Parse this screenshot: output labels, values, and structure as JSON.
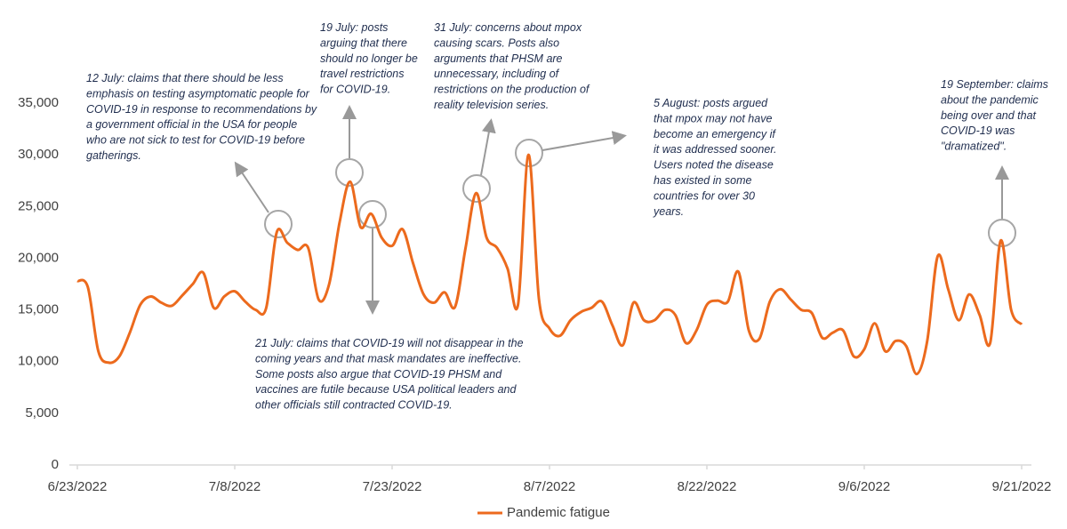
{
  "chart_data": {
    "type": "line",
    "x": [
      "6/23/2022",
      "6/24/2022",
      "6/25/2022",
      "6/26/2022",
      "6/27/2022",
      "6/28/2022",
      "6/29/2022",
      "6/30/2022",
      "7/1/2022",
      "7/2/2022",
      "7/3/2022",
      "7/4/2022",
      "7/5/2022",
      "7/6/2022",
      "7/7/2022",
      "7/8/2022",
      "7/9/2022",
      "7/10/2022",
      "7/11/2022",
      "7/12/2022",
      "7/13/2022",
      "7/14/2022",
      "7/15/2022",
      "7/16/2022",
      "7/17/2022",
      "7/18/2022",
      "7/19/2022",
      "7/20/2022",
      "7/21/2022",
      "7/22/2022",
      "7/23/2022",
      "7/24/2022",
      "7/25/2022",
      "7/26/2022",
      "7/27/2022",
      "7/28/2022",
      "7/29/2022",
      "7/30/2022",
      "7/31/2022",
      "8/1/2022",
      "8/2/2022",
      "8/3/2022",
      "8/4/2022",
      "8/5/2022",
      "8/6/2022",
      "8/7/2022",
      "8/8/2022",
      "8/9/2022",
      "8/10/2022",
      "8/11/2022",
      "8/12/2022",
      "8/13/2022",
      "8/14/2022",
      "8/15/2022",
      "8/16/2022",
      "8/17/2022",
      "8/18/2022",
      "8/19/2022",
      "8/20/2022",
      "8/21/2022",
      "8/22/2022",
      "8/23/2022",
      "8/24/2022",
      "8/25/2022",
      "8/26/2022",
      "8/27/2022",
      "8/28/2022",
      "8/29/2022",
      "8/30/2022",
      "8/31/2022",
      "9/1/2022",
      "9/2/2022",
      "9/3/2022",
      "9/4/2022",
      "9/5/2022",
      "9/6/2022",
      "9/7/2022",
      "9/8/2022",
      "9/9/2022",
      "9/10/2022",
      "9/11/2022",
      "9/12/2022",
      "9/13/2022",
      "9/14/2022",
      "9/15/2022",
      "9/16/2022",
      "9/17/2022",
      "9/18/2022",
      "9/19/2022",
      "9/20/2022",
      "9/21/2022"
    ],
    "series": [
      {
        "name": "Pandemic fatigue",
        "color": "#ec6a1d",
        "values": [
          17800,
          17200,
          11000,
          9900,
          10500,
          12800,
          15500,
          16300,
          15700,
          15400,
          16400,
          17500,
          18600,
          15200,
          16300,
          16800,
          15800,
          15000,
          15200,
          22500,
          21500,
          20800,
          21000,
          16000,
          17500,
          23500,
          27400,
          23000,
          24300,
          22000,
          21200,
          22800,
          19500,
          16500,
          15700,
          16700,
          15300,
          21000,
          26300,
          22000,
          21000,
          19000,
          15500,
          30000,
          16000,
          13200,
          12500,
          14000,
          14800,
          15200,
          15800,
          13500,
          11600,
          15700,
          14000,
          14000,
          15000,
          14500,
          11800,
          13000,
          15500,
          15900,
          15800,
          18700,
          13000,
          12200,
          15800,
          17000,
          16000,
          15000,
          14700,
          12300,
          12800,
          13000,
          10500,
          11200,
          13700,
          11000,
          12000,
          11500,
          8800,
          12000,
          20200,
          17000,
          14000,
          16500,
          14500,
          11800,
          21700,
          15000,
          13600
        ]
      }
    ],
    "ylim": [
      0,
      35000
    ],
    "yticks": [
      0,
      {
        "value": 5000,
        "label": "5,000"
      },
      {
        "value": 10000,
        "label": "10,000"
      },
      {
        "value": 15000,
        "label": "15,000"
      },
      {
        "value": 20000,
        "label": "20,000"
      },
      {
        "value": 25000,
        "label": "25,000"
      },
      {
        "value": 30000,
        "label": "30,000"
      },
      {
        "value": 35000,
        "label": "35,000"
      }
    ],
    "xticks": [
      "6/23/2022",
      "7/8/2022",
      "7/23/2022",
      "8/7/2022",
      "8/22/2022",
      "9/6/2022",
      "9/21/2022"
    ],
    "grid": false,
    "legend": "bottom",
    "annotations": [
      [
        "12 July: claims that there should be less",
        "emphasis on testing asymptomatic people for",
        "COVID-19 in response to recommendations by",
        "a government official in the USA for people",
        "who are not sick to test for COVID-19 before",
        "gatherings."
      ],
      [
        "19 July: posts",
        "arguing that there",
        "should no longer be",
        "travel restrictions",
        "for COVID-19."
      ],
      [
        "31 July: concerns about mpox",
        "causing scars. Posts also",
        "arguments that PHSM are",
        "unnecessary, including of",
        "restrictions on the production of",
        "reality television series."
      ],
      [
        "5 August: posts argued",
        "that mpox may not have",
        "become an emergency if",
        "it was addressed sooner.",
        "Users noted the disease",
        "has existed in some",
        "countries for over 30",
        "years."
      ],
      [
        "19 September: claims",
        "about the pandemic",
        "being over and that",
        "COVID-19 was",
        "\"dramatized\"."
      ],
      [
        "21 July: claims that COVID-19 will not disappear in the",
        "coming years and that mask mandates are ineffective.",
        "Some posts also argue that COVID-19 PHSM and",
        "vaccines are futile because USA political leaders and",
        "other officials still contracted COVID-19."
      ]
    ]
  }
}
